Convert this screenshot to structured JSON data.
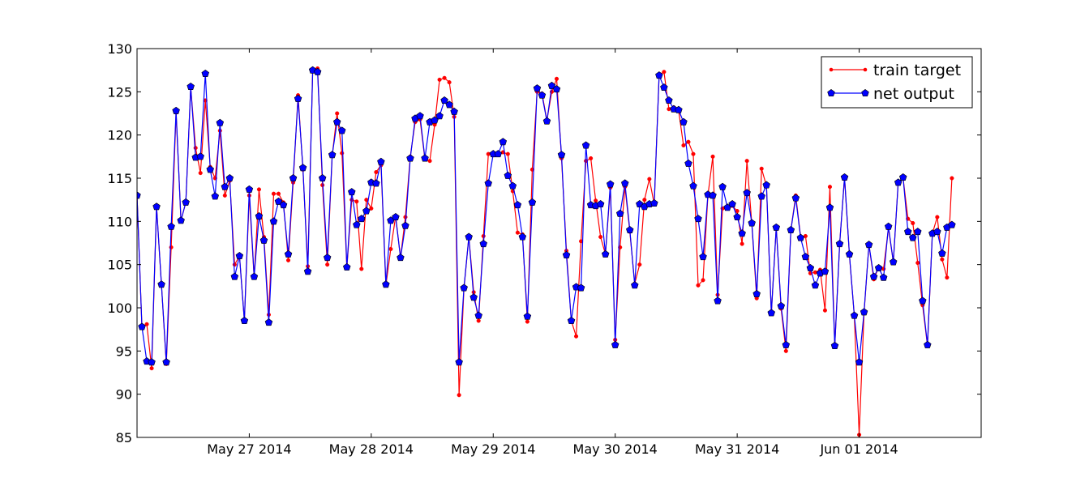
{
  "chart_data": {
    "type": "line",
    "title": "",
    "xlabel": "",
    "ylabel": "",
    "ylim": [
      85,
      130
    ],
    "yticks": [
      85,
      90,
      95,
      100,
      105,
      110,
      115,
      120,
      125,
      130
    ],
    "x_start": "May 26 2014 01:00",
    "x_step_hours": 1,
    "xlim_index": [
      0,
      173
    ],
    "xticks": [
      {
        "index": 23,
        "label": "May 27 2014"
      },
      {
        "index": 48,
        "label": "May 28 2014"
      },
      {
        "index": 73,
        "label": "May 29 2014"
      },
      {
        "index": 98,
        "label": "May 30 2014"
      },
      {
        "index": 123,
        "label": "May 31 2014"
      },
      {
        "index": 148,
        "label": "Jun 01 2014"
      }
    ],
    "legend_position": "top-right",
    "grid": false,
    "series": [
      {
        "name": "train target",
        "color": "#ff0000",
        "marker": "dot",
        "values": [
          113.0,
          97.8,
          98.1,
          93.0,
          111.7,
          102.7,
          93.5,
          107.0,
          122.6,
          110.1,
          112.2,
          125.5,
          118.5,
          115.6,
          124.0,
          116.3,
          115.0,
          120.5,
          113.0,
          114.7,
          105.0,
          106.0,
          98.5,
          113.0,
          103.5,
          113.7,
          108.2,
          99.2,
          113.2,
          113.2,
          112.2,
          105.5,
          114.5,
          124.6,
          116.0,
          104.8,
          127.5,
          127.7,
          114.2,
          105.0,
          117.6,
          122.5,
          117.9,
          104.6,
          112.5,
          112.3,
          104.5,
          112.5,
          111.5,
          115.7,
          116.5,
          102.6,
          106.8,
          110.6,
          105.8,
          110.5,
          117.5,
          121.5,
          121.8,
          117.2,
          117.0,
          121.2,
          126.4,
          126.6,
          126.1,
          122.1,
          89.9,
          102.2,
          108.2,
          101.8,
          98.5,
          108.3,
          117.8,
          117.8,
          117.8,
          118.0,
          117.8,
          113.5,
          108.7,
          108.5,
          98.4,
          116.0,
          125.0,
          124.8,
          121.7,
          125.0,
          126.5,
          117.3,
          106.6,
          98.5,
          96.7,
          107.7,
          117.0,
          117.3,
          112.4,
          108.2,
          106.2,
          113.9,
          96.3,
          107.0,
          114.0,
          108.8,
          102.8,
          105.0,
          112.5,
          114.9,
          112.0,
          127.0,
          127.3,
          123.0,
          123.2,
          122.8,
          118.8,
          119.2,
          117.8,
          102.6,
          103.2,
          113.0,
          117.5,
          101.5,
          111.5,
          111.6,
          111.8,
          111.2,
          107.4,
          117.0,
          109.7,
          101.1,
          116.1,
          114.1,
          99.3,
          109.3,
          99.9,
          95.0,
          109.0,
          113.0,
          108.2,
          108.3,
          104.0,
          104.1,
          104.4,
          99.7,
          114.0,
          95.6,
          107.4,
          115.1,
          106.1,
          99.1,
          85.3,
          99.4,
          107.3,
          103.3,
          104.7,
          104.5,
          109.2,
          105.3,
          114.5,
          115.0,
          110.3,
          109.8,
          105.2,
          100.3,
          95.6,
          108.6,
          110.5,
          105.6,
          103.5,
          115.0
        ]
      },
      {
        "name": "net output",
        "color": "#0000ff",
        "marker": "pentagon",
        "values": [
          113.0,
          97.8,
          93.8,
          93.7,
          111.7,
          102.7,
          93.7,
          109.4,
          122.8,
          110.1,
          112.2,
          125.6,
          117.4,
          117.5,
          127.1,
          116.0,
          112.9,
          121.4,
          114.0,
          115.0,
          103.6,
          106.0,
          98.5,
          113.7,
          103.6,
          110.6,
          107.8,
          98.3,
          110.0,
          112.3,
          111.9,
          106.2,
          115.0,
          124.2,
          116.2,
          104.2,
          127.5,
          127.3,
          115.0,
          105.8,
          117.7,
          121.5,
          120.5,
          104.7,
          113.4,
          109.6,
          110.3,
          111.2,
          114.5,
          114.4,
          116.9,
          102.7,
          110.1,
          110.5,
          105.8,
          109.5,
          117.3,
          121.9,
          122.2,
          117.3,
          121.5,
          121.7,
          122.2,
          124.0,
          123.5,
          122.7,
          93.7,
          102.3,
          108.2,
          101.2,
          99.1,
          107.4,
          114.4,
          117.8,
          117.8,
          119.2,
          115.3,
          114.1,
          111.9,
          108.2,
          99.0,
          112.2,
          125.4,
          124.6,
          121.6,
          125.7,
          125.3,
          117.7,
          106.1,
          98.5,
          102.4,
          102.3,
          118.8,
          111.9,
          111.8,
          112.0,
          106.2,
          114.3,
          95.7,
          110.9,
          114.4,
          109.0,
          102.6,
          112.0,
          111.7,
          112.0,
          112.1,
          126.9,
          125.5,
          124.0,
          123.0,
          122.9,
          121.5,
          116.7,
          114.1,
          110.3,
          105.9,
          113.1,
          113.0,
          100.8,
          114.0,
          111.6,
          112.0,
          110.5,
          108.6,
          113.3,
          109.8,
          101.6,
          112.9,
          114.2,
          99.4,
          109.3,
          100.2,
          95.7,
          109.0,
          112.7,
          108.1,
          105.9,
          104.6,
          102.6,
          104.0,
          104.2,
          111.6,
          95.6,
          107.4,
          115.1,
          106.2,
          99.1,
          93.7,
          99.5,
          107.3,
          103.6,
          104.6,
          103.5,
          109.4,
          105.3,
          114.5,
          115.1,
          108.8,
          108.1,
          108.8,
          100.8,
          95.7,
          108.6,
          108.8,
          106.3,
          109.3,
          109.6
        ]
      }
    ]
  }
}
